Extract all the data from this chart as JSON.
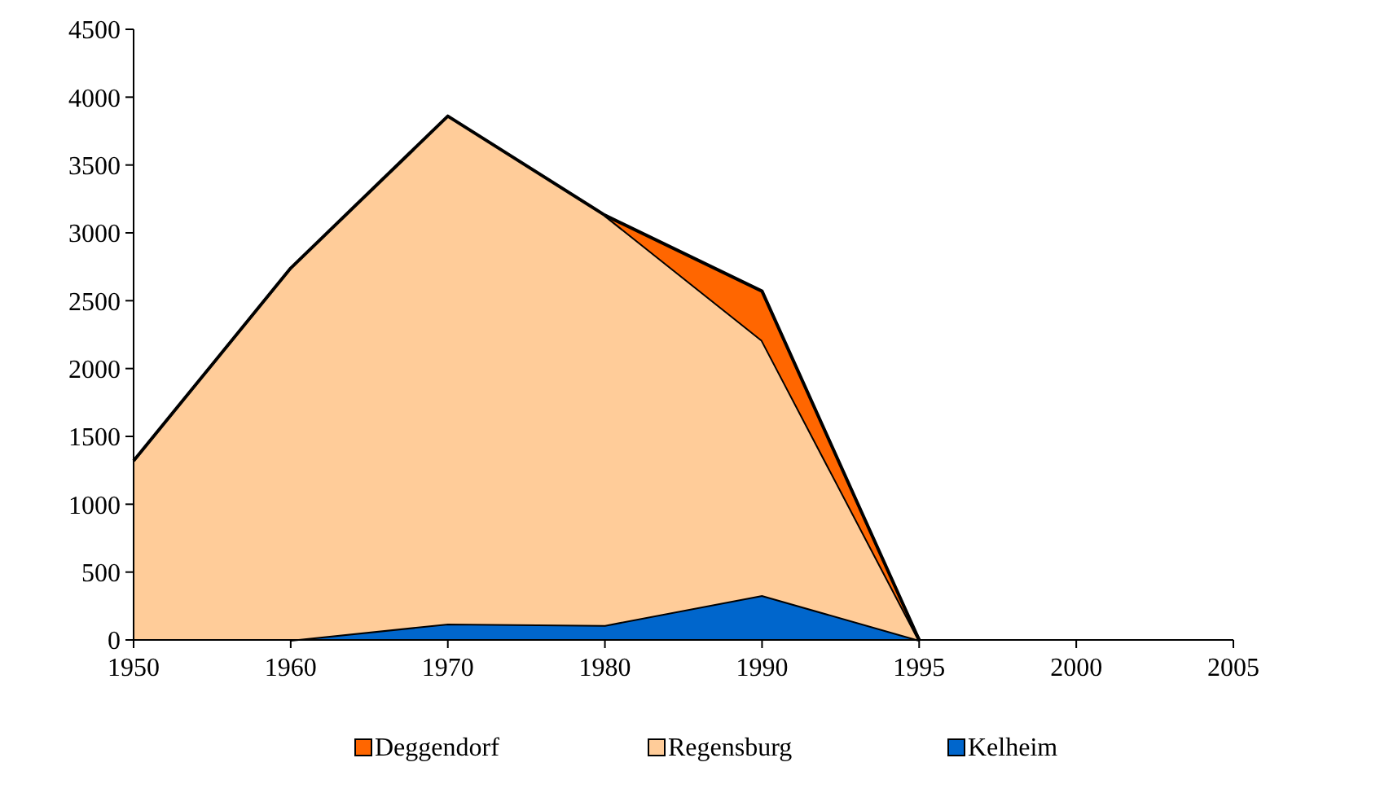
{
  "chart_data": {
    "type": "area",
    "stacked": true,
    "categories": [
      "1950",
      "1960",
      "1970",
      "1980",
      "1990",
      "1995",
      "2000",
      "2005"
    ],
    "series": [
      {
        "name": "Kelheim",
        "color": "#0066cc",
        "values": [
          null,
          0,
          120,
          110,
          330,
          0,
          null,
          null
        ]
      },
      {
        "name": "Regensburg",
        "color": "#ffcc99",
        "values": [
          1320,
          2740,
          3740,
          3020,
          1880,
          0,
          null,
          null
        ]
      },
      {
        "name": "Deggendorf",
        "color": "#ff6600",
        "values": [
          null,
          null,
          null,
          0,
          360,
          0,
          null,
          null
        ]
      }
    ],
    "ylim": [
      0,
      4500
    ],
    "yticks": [
      0,
      500,
      1000,
      1500,
      2000,
      2500,
      3000,
      3500,
      4000,
      4500
    ],
    "grid": false,
    "legend": "bottom"
  }
}
